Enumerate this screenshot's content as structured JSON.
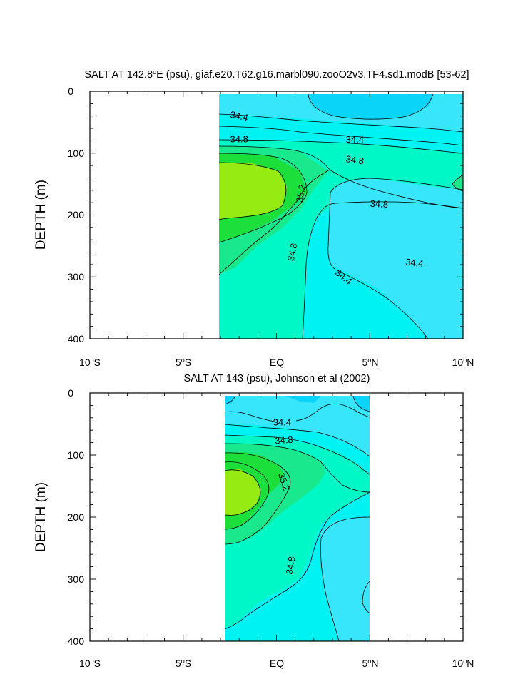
{
  "chart_data": [
    {
      "type": "contour",
      "title": "SALT AT 142.8ºE (psu), giaf.e20.T62.g16.marbl090.zooO2v3.TF4.sd1.modB [53-62]",
      "title_parts": {
        "before": "SALT AT 142.8",
        "degree": "o",
        "after": "E (psu), giaf.e20.T62.g16.marbl090.zooO2v3.TF4.sd1.modB [53-62]"
      },
      "xlabel": "",
      "ylabel": "DEPTH (m)",
      "xlim": [
        -10,
        10
      ],
      "ylim": [
        400,
        0
      ],
      "xticks": [
        {
          "value": -10,
          "num": "10",
          "deg": "o",
          "hem": "S"
        },
        {
          "value": -5,
          "num": "5",
          "deg": "o",
          "hem": "S"
        },
        {
          "value": 0,
          "num": "EQ",
          "deg": "",
          "hem": ""
        },
        {
          "value": 5,
          "num": "5",
          "deg": "o",
          "hem": "N"
        },
        {
          "value": 10,
          "num": "10",
          "deg": "o",
          "hem": "N"
        }
      ],
      "yticks": [
        "0",
        "100",
        "200",
        "300",
        "400"
      ],
      "data_extent": {
        "lat": [
          -3.0,
          10.0
        ],
        "depth": [
          5,
          400
        ]
      },
      "contour_levels": [
        34.2,
        34.4,
        34.6,
        34.8,
        35.0,
        35.2,
        35.4
      ],
      "contour_labels": [
        {
          "text": "34.4",
          "lat": -2.0,
          "depth": 40,
          "angle": 12
        },
        {
          "text": "34.8",
          "lat": -2.0,
          "depth": 77,
          "angle": 0
        },
        {
          "text": "34.4",
          "lat": 4.2,
          "depth": 78,
          "angle": 0
        },
        {
          "text": "34.8",
          "lat": 4.2,
          "depth": 111,
          "angle": 8
        },
        {
          "text": "35.2",
          "lat": 1.3,
          "depth": 165,
          "angle": -80
        },
        {
          "text": "34.8",
          "lat": 5.5,
          "depth": 182,
          "angle": 3
        },
        {
          "text": "34.8",
          "lat": 0.85,
          "depth": 260,
          "angle": -78
        },
        {
          "text": "34.4",
          "lat": 3.6,
          "depth": 300,
          "angle": 38
        },
        {
          "text": "34.4",
          "lat": 7.4,
          "depth": 277,
          "angle": 5
        }
      ]
    },
    {
      "type": "contour",
      "title": "SALT AT 143 (psu), Johnson et al (2002)",
      "title_parts": {
        "before": "SALT AT 143 (psu), Johnson et al (2002)",
        "degree": "",
        "after": ""
      },
      "xlabel": "",
      "ylabel": "DEPTH (m)",
      "xlim": [
        -10,
        10
      ],
      "ylim": [
        400,
        0
      ],
      "xticks": [
        {
          "value": -10,
          "num": "10",
          "deg": "o",
          "hem": "S"
        },
        {
          "value": -5,
          "num": "5",
          "deg": "o",
          "hem": "S"
        },
        {
          "value": 0,
          "num": "EQ",
          "deg": "",
          "hem": ""
        },
        {
          "value": 5,
          "num": "5",
          "deg": "o",
          "hem": "N"
        },
        {
          "value": 10,
          "num": "10",
          "deg": "o",
          "hem": "N"
        }
      ],
      "yticks": [
        "0",
        "100",
        "200",
        "300",
        "400"
      ],
      "data_extent": {
        "lat": [
          -2.7,
          5.0
        ],
        "depth": [
          5,
          400
        ]
      },
      "contour_levels": [
        34.2,
        34.4,
        34.6,
        34.8,
        35.0,
        35.2,
        35.4
      ],
      "contour_labels": [
        {
          "text": "34.4",
          "lat": 0.3,
          "depth": 47,
          "angle": 0
        },
        {
          "text": "34.8",
          "lat": 0.4,
          "depth": 76,
          "angle": -4
        },
        {
          "text": "35.2",
          "lat": 0.4,
          "depth": 143,
          "angle": 72
        },
        {
          "text": "34.8",
          "lat": 0.75,
          "depth": 278,
          "angle": -80
        }
      ]
    }
  ],
  "colors": {
    "s_34_2_34_4": "#0ad4f7",
    "s_34_4_34_6": "#38e6fb",
    "s_34_6_34_8": "#00f2f2",
    "s_34_8_35_0": "#00f7c6",
    "s_35_0_35_2": "#1ae88c",
    "s_35_2_35_4": "#1cdf3c",
    "s_35_4_plus": "#96ec12"
  }
}
